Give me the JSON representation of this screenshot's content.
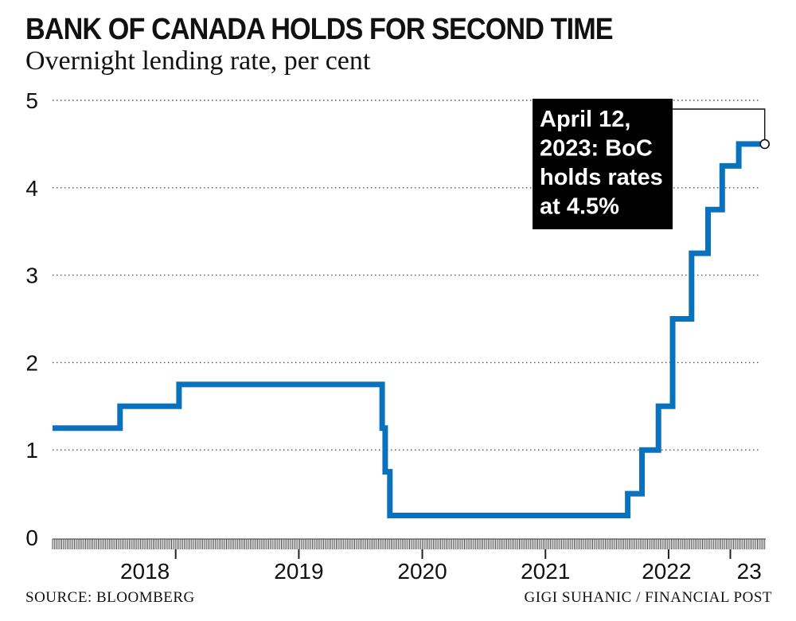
{
  "header": {
    "title": "BANK OF CANADA HOLDS FOR SECOND TIME",
    "subtitle": "Overnight lending rate, per cent"
  },
  "footer": {
    "source": "SOURCE: BLOOMBERG",
    "credit": "GIGI SUHANIC / FINANCIAL POST"
  },
  "colors": {
    "line": "#0a72bd",
    "grid": "#555555",
    "annotation_bg": "#000000"
  },
  "chart_data": {
    "type": "line",
    "step": true,
    "title": "BANK OF CANADA HOLDS FOR SECOND TIME",
    "subtitle": "Overnight lending rate, per cent",
    "ylim": [
      0,
      5
    ],
    "yticks": [
      "0",
      "1",
      "2",
      "3",
      "4",
      "5"
    ],
    "xlim": [
      "2017-07-01",
      "2023-04-15"
    ],
    "xtick_labels": [
      {
        "label": "2018",
        "x": "2018-01-01"
      },
      {
        "label": "2019",
        "x": "2019-01-01"
      },
      {
        "label": "2020",
        "x": "2020-01-01"
      },
      {
        "label": "2021",
        "x": "2021-01-01"
      },
      {
        "label": "2022",
        "x": "2022-01-01"
      },
      {
        "label": "23",
        "x": "2023-01-01"
      }
    ],
    "grid": "horizontal-dotted",
    "series": [
      {
        "values": [
          {
            "x": "2017-07-01",
            "y": 1.25
          },
          {
            "x": "2018-01-17",
            "y": 1.5
          },
          {
            "x": "2018-07-11",
            "y": 1.75
          },
          {
            "x": "2020-03-04",
            "y": 1.25
          },
          {
            "x": "2020-03-13",
            "y": 0.75
          },
          {
            "x": "2020-03-27",
            "y": 0.25
          },
          {
            "x": "2022-03-02",
            "y": 0.5
          },
          {
            "x": "2022-04-13",
            "y": 1.0
          },
          {
            "x": "2022-06-01",
            "y": 1.5
          },
          {
            "x": "2022-07-13",
            "y": 2.5
          },
          {
            "x": "2022-09-07",
            "y": 3.25
          },
          {
            "x": "2022-10-26",
            "y": 3.75
          },
          {
            "x": "2022-12-07",
            "y": 4.25
          },
          {
            "x": "2023-01-25",
            "y": 4.5
          },
          {
            "x": "2023-04-12",
            "y": 4.5
          }
        ]
      }
    ],
    "annotation": {
      "x": "2023-04-12",
      "y": 4.5,
      "lines": [
        "April 12,",
        "2023: BoC",
        "holds rates",
        "at 4.5%"
      ]
    }
  }
}
